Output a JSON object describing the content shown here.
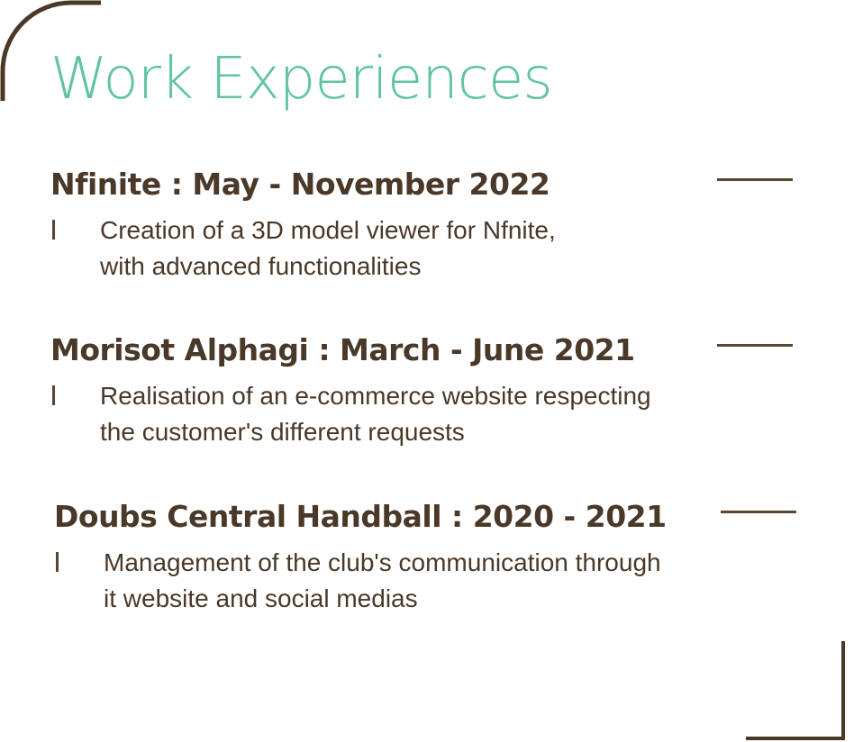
{
  "section": {
    "title": "Work Experiences",
    "accent_color": "#60c3a4",
    "text_color": "#4a3828",
    "line_color": "#5b4533"
  },
  "experiences": [
    {
      "heading": "Nfinite : May - November 2022",
      "lines": [
        "Creation of a 3D  model viewer for Nfnite,",
        "with advanced functionalities"
      ]
    },
    {
      "heading": "Morisot Alphagi : March - June 2021",
      "lines": [
        "Realisation of an e-commerce website respecting",
        "the customer's different requests"
      ]
    },
    {
      "heading": "Doubs Central Handball : 2020 - 2021",
      "lines": [
        "Management of the club's communication through",
        "it website and social medias"
      ]
    }
  ]
}
